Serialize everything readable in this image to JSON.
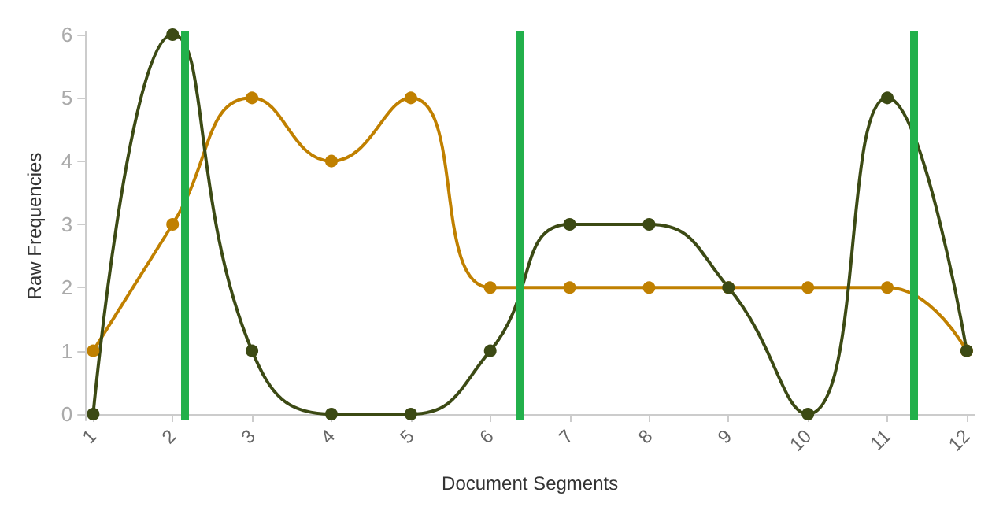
{
  "chart_data": {
    "type": "line",
    "xlabel": "Document Segments",
    "ylabel": "Raw Frequencies",
    "x": [
      1,
      2,
      3,
      4,
      5,
      6,
      7,
      8,
      9,
      10,
      11,
      12
    ],
    "series": [
      {
        "color": "#c08000",
        "values": [
          1,
          3,
          5,
          4,
          5,
          2,
          2,
          2,
          2,
          2,
          2,
          1
        ]
      },
      {
        "color": "#3c4a14",
        "values": [
          0,
          6,
          1,
          0,
          0,
          1,
          3,
          3,
          2,
          0,
          5,
          1
        ]
      }
    ],
    "xlim": [
      0.9,
      12.1
    ],
    "xticks": [
      1,
      2,
      3,
      4,
      5,
      6,
      7,
      8,
      9,
      10,
      11,
      12
    ],
    "ylim": [
      -0.1,
      6.05
    ],
    "yticks": [
      0,
      1,
      2,
      3,
      4,
      5,
      6
    ],
    "ref_lines": [
      {
        "axis": "x",
        "value": 2.15,
        "color": "#22b04b"
      },
      {
        "axis": "x",
        "value": 6.37,
        "color": "#22b04b"
      },
      {
        "axis": "x",
        "value": 11.33,
        "color": "#22b04b"
      }
    ],
    "grid": false,
    "marker": "circle",
    "line_style": "solid"
  }
}
